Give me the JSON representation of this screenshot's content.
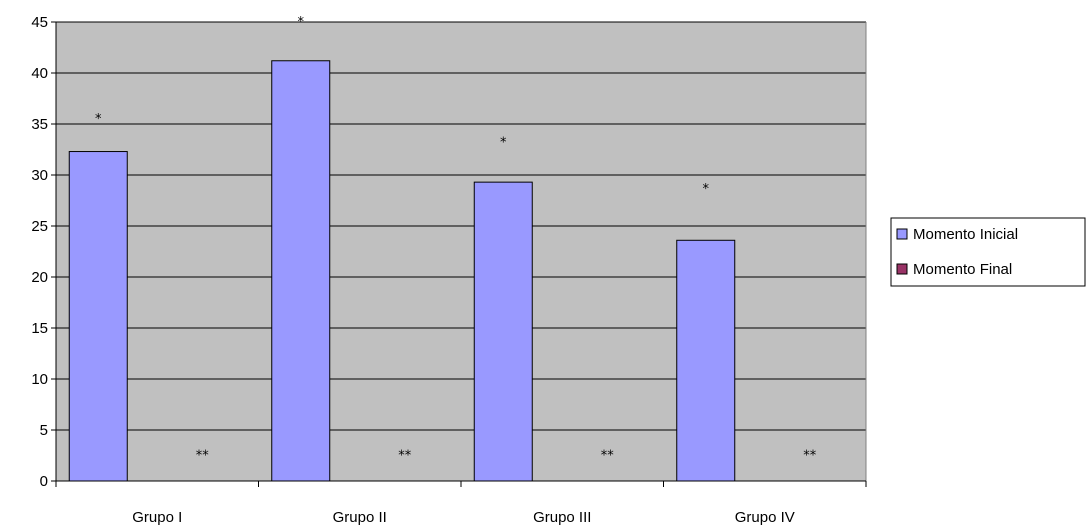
{
  "chart_data": {
    "type": "bar",
    "categories": [
      "Grupo I",
      "Grupo II",
      "Grupo III",
      "Grupo IV"
    ],
    "series": [
      {
        "name": "Momento Inicial",
        "values": [
          32.3,
          41.2,
          29.3,
          23.6
        ],
        "color": "#9999ff"
      },
      {
        "name": "Momento Final",
        "values": [
          0,
          0,
          0,
          0
        ],
        "color": "#993366"
      }
    ],
    "ylim": [
      0,
      45
    ],
    "yticks": [
      0,
      5,
      10,
      15,
      20,
      25,
      30,
      35,
      40,
      45
    ],
    "ytick_labels": [
      "0",
      "5",
      "10",
      "15",
      "20",
      "25",
      "30",
      "35",
      "40",
      "45"
    ],
    "grid": true,
    "plot_background": "#c0c0c0",
    "legend_position": "right",
    "annotations": [
      {
        "category": "Grupo I",
        "series": "Momento Inicial",
        "text": "*",
        "y": 35.7
      },
      {
        "category": "Grupo II",
        "series": "Momento Inicial",
        "text": "*",
        "y": 45.2
      },
      {
        "category": "Grupo III",
        "series": "Momento Inicial",
        "text": "*",
        "y": 33.4
      },
      {
        "category": "Grupo IV",
        "series": "Momento Inicial",
        "text": "*",
        "y": 28.8
      },
      {
        "category": "Grupo I",
        "series": "Momento Final",
        "text": "**",
        "y": 2.7
      },
      {
        "category": "Grupo II",
        "series": "Momento Final",
        "text": "**",
        "y": 2.7
      },
      {
        "category": "Grupo III",
        "series": "Momento Final",
        "text": "**",
        "y": 2.7
      },
      {
        "category": "Grupo IV",
        "series": "Momento Final",
        "text": "**",
        "y": 2.7
      }
    ]
  }
}
